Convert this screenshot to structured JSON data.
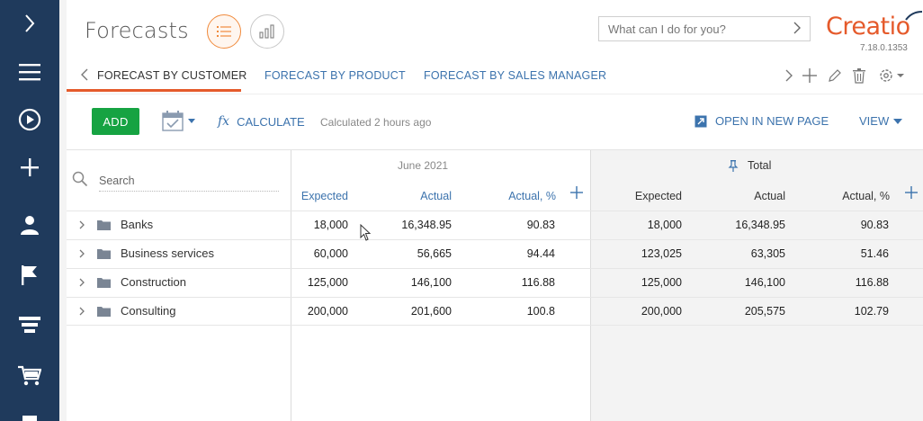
{
  "left_nav": {
    "items": [
      {
        "icon": "chevron-right-icon"
      },
      {
        "icon": "hamburger-menu-icon"
      },
      {
        "icon": "play-circle-icon"
      },
      {
        "icon": "plus-icon"
      },
      {
        "icon": "contact-person-icon"
      },
      {
        "icon": "flag-icon"
      },
      {
        "icon": "funnel-icon"
      },
      {
        "icon": "shopping-cart-icon"
      },
      {
        "icon": "document-icon"
      }
    ],
    "background": "#1f3a5c"
  },
  "header": {
    "title": "Forecasts",
    "command_placeholder": "What can I do for you?",
    "logo_text": "Creatio",
    "version": "7.18.0.1353"
  },
  "tabs": [
    {
      "label": "FORECAST BY CUSTOMER",
      "active": true
    },
    {
      "label": "FORECAST BY PRODUCT",
      "active": false
    },
    {
      "label": "FORECAST BY SALES MANAGER",
      "active": false
    }
  ],
  "actions": {
    "add_label": "ADD",
    "calculate_label": "CALCULATE",
    "calculate_status": "Calculated 2 hours ago",
    "open_new_label": "OPEN IN NEW PAGE",
    "view_label": "VIEW"
  },
  "grid": {
    "search_placeholder": "Search",
    "period_label": "June 2021",
    "total_label": "Total",
    "columns": [
      "Expected",
      "Actual",
      "Actual, %"
    ],
    "rows": [
      {
        "name": "Banks",
        "period": [
          "18,000",
          "16,348.95",
          "90.83"
        ],
        "total": [
          "18,000",
          "16,348.95",
          "90.83"
        ]
      },
      {
        "name": "Business services",
        "period": [
          "60,000",
          "56,665",
          "94.44"
        ],
        "total": [
          "123,025",
          "63,305",
          "51.46"
        ]
      },
      {
        "name": "Construction",
        "period": [
          "125,000",
          "146,100",
          "116.88"
        ],
        "total": [
          "125,000",
          "146,100",
          "116.88"
        ]
      },
      {
        "name": "Consulting",
        "period": [
          "200,000",
          "201,600",
          "100.8"
        ],
        "total": [
          "200,000",
          "205,575",
          "102.79"
        ]
      }
    ]
  },
  "colors": {
    "accent_orange": "#e55a2b",
    "link_blue": "#3c73ad",
    "add_green": "#16a342"
  }
}
